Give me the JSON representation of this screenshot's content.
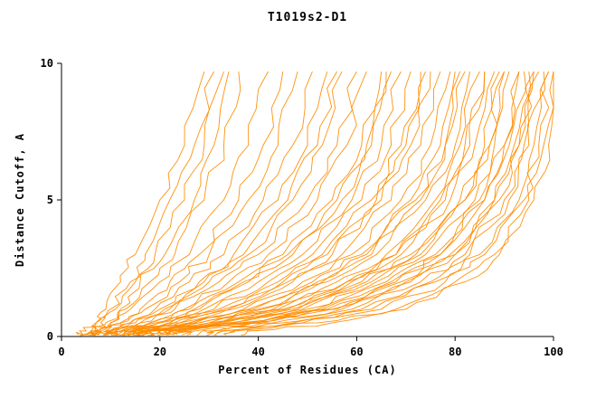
{
  "chart_data": {
    "type": "line",
    "title": "T1019s2-D1",
    "xlabel": "Percent of Residues (CA)",
    "ylabel": "Distance Cutoff, A",
    "xlim": [
      0,
      100
    ],
    "ylim": [
      0,
      10
    ],
    "xticks": [
      0,
      20,
      40,
      60,
      80,
      100
    ],
    "yticks": [
      0,
      5,
      10
    ],
    "grid": false,
    "legend": false,
    "line_color": "#ff8c00",
    "axis_color": "#000000",
    "cutoffs": [
      0.2,
      0.5,
      1,
      2,
      3,
      5,
      7,
      10
    ],
    "series": [
      [
        6,
        7,
        9,
        12,
        15,
        20,
        25,
        29
      ],
      [
        5,
        7,
        10,
        14,
        17,
        22,
        27,
        31
      ],
      [
        7,
        8,
        11,
        15,
        19,
        25,
        29,
        33
      ],
      [
        6,
        9,
        12,
        16,
        21,
        27,
        31,
        34
      ],
      [
        8,
        10,
        13,
        18,
        23,
        29,
        33,
        36
      ],
      [
        7,
        10,
        14,
        20,
        26,
        33,
        38,
        42
      ],
      [
        9,
        12,
        16,
        22,
        28,
        36,
        41,
        45
      ],
      [
        8,
        12,
        17,
        24,
        30,
        38,
        44,
        48
      ],
      [
        10,
        14,
        19,
        26,
        33,
        41,
        47,
        51
      ],
      [
        9,
        14,
        20,
        28,
        35,
        44,
        50,
        54
      ],
      [
        11,
        16,
        22,
        30,
        38,
        47,
        53,
        57
      ],
      [
        10,
        16,
        23,
        32,
        40,
        50,
        56,
        60
      ],
      [
        12,
        18,
        25,
        34,
        42,
        52,
        58,
        62
      ],
      [
        11,
        18,
        26,
        36,
        45,
        55,
        61,
        65
      ],
      [
        13,
        20,
        28,
        38,
        47,
        57,
        63,
        67
      ],
      [
        12,
        20,
        29,
        40,
        49,
        59,
        65,
        69
      ],
      [
        14,
        22,
        31,
        42,
        51,
        61,
        67,
        71
      ],
      [
        13,
        22,
        32,
        44,
        53,
        63,
        69,
        73
      ],
      [
        15,
        24,
        34,
        46,
        55,
        65,
        71,
        75
      ],
      [
        14,
        24,
        35,
        47,
        57,
        67,
        73,
        77
      ],
      [
        16,
        26,
        37,
        49,
        59,
        69,
        75,
        79
      ],
      [
        15,
        26,
        38,
        51,
        61,
        71,
        77,
        80
      ],
      [
        17,
        28,
        40,
        53,
        63,
        73,
        78,
        82
      ],
      [
        16,
        28,
        41,
        54,
        64,
        74,
        80,
        83
      ],
      [
        18,
        30,
        43,
        56,
        66,
        76,
        81,
        85
      ],
      [
        17,
        30,
        44,
        58,
        68,
        78,
        83,
        86
      ],
      [
        19,
        32,
        46,
        59,
        69,
        79,
        84,
        88
      ],
      [
        18,
        32,
        47,
        61,
        71,
        81,
        86,
        89
      ],
      [
        20,
        34,
        49,
        63,
        73,
        82,
        87,
        90
      ],
      [
        21,
        35,
        50,
        64,
        74,
        84,
        88,
        91
      ],
      [
        22,
        36,
        52,
        66,
        76,
        85,
        90,
        93
      ],
      [
        23,
        38,
        54,
        68,
        77,
        86,
        91,
        94
      ],
      [
        24,
        39,
        55,
        69,
        79,
        88,
        92,
        95
      ],
      [
        26,
        41,
        57,
        71,
        80,
        89,
        93,
        96
      ],
      [
        27,
        43,
        59,
        73,
        82,
        90,
        94,
        97
      ],
      [
        29,
        45,
        61,
        75,
        83,
        91,
        95,
        98
      ],
      [
        31,
        47,
        63,
        76,
        85,
        93,
        96,
        99
      ],
      [
        33,
        49,
        65,
        78,
        86,
        94,
        97,
        99
      ],
      [
        35,
        52,
        68,
        80,
        88,
        95,
        98,
        100
      ],
      [
        38,
        55,
        70,
        82,
        89,
        96,
        99,
        100
      ],
      [
        10,
        15,
        21,
        29,
        37,
        46,
        52,
        56
      ],
      [
        12,
        19,
        27,
        37,
        46,
        56,
        62,
        66
      ],
      [
        14,
        23,
        33,
        45,
        54,
        64,
        70,
        74
      ],
      [
        16,
        27,
        39,
        52,
        62,
        72,
        78,
        81
      ],
      [
        18,
        31,
        45,
        58,
        68,
        77,
        82,
        86
      ],
      [
        20,
        33,
        48,
        62,
        72,
        82,
        87,
        90
      ],
      [
        22,
        37,
        53,
        67,
        77,
        86,
        90,
        93
      ],
      [
        25,
        40,
        56,
        70,
        80,
        88,
        93,
        96
      ]
    ]
  }
}
